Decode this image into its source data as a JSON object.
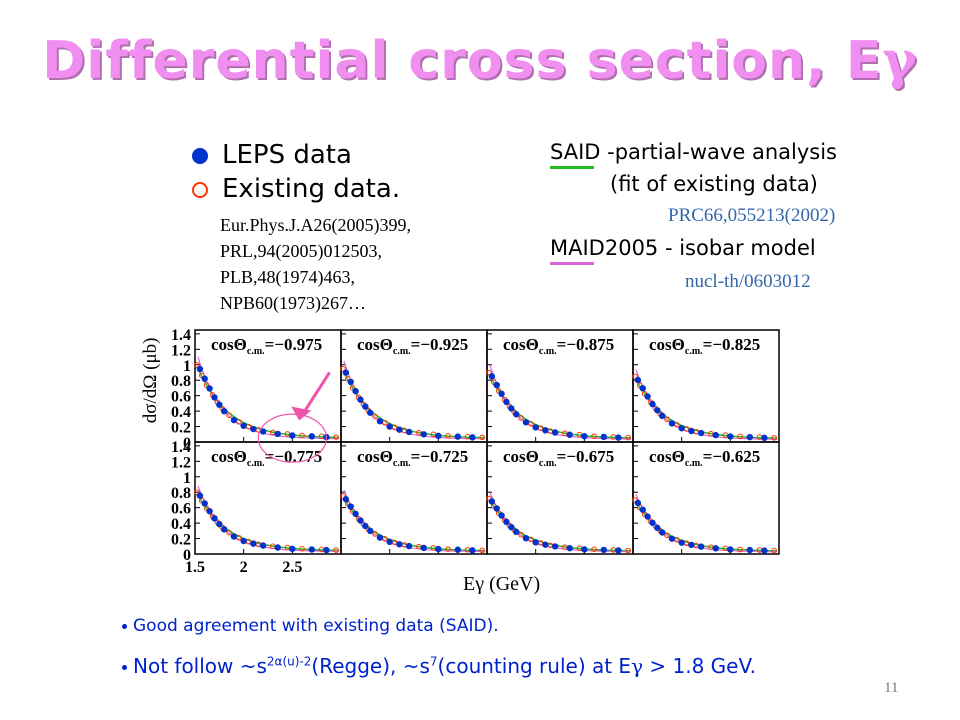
{
  "title": {
    "text": "Differential cross section, E",
    "gamma": "γ"
  },
  "legend": {
    "leps": "LEPS data",
    "existing": "Existing data."
  },
  "references": [
    "Eur.Phys.J.A26(2005)399,",
    "PRL,94(2005)012503,",
    "PLB,48(1974)463,",
    "NPB60(1973)267…"
  ],
  "models": {
    "said_line1": "SAID -partial-wave analysis",
    "said_line2": "(fit of existing data)",
    "said_cite": "PRC66,055213(2002)",
    "maid": "MAID2005 - isobar model",
    "maid_cite": "nucl-th/0603012",
    "said_color": "#22bb22",
    "maid_color": "#dd66dd"
  },
  "bullets": {
    "b1": "Good agreement with existing data (SAID).",
    "b2_a": "Not follow ~s",
    "b2_sup1": "2α(u)-2",
    "b2_b": "(Regge), ~s",
    "b2_sup2": "7",
    "b2_c": "(counting rule) at E",
    "b2_gamma": "γ",
    "b2_d": " > 1.8 GeV."
  },
  "page_number": "11",
  "colors": {
    "title": "#f08ff0",
    "leps": "#0033cc",
    "existing": "#ff3300",
    "bullet_text": "#0022cc",
    "highlight": "#ee55aa"
  },
  "chart_data": {
    "type": "scatter",
    "xlabel": "Eγ (GeV)",
    "ylabel": "dσ/dΩ (μb)",
    "xlim": [
      1.5,
      3.0
    ],
    "ylim": [
      0,
      1.45
    ],
    "x_ticks": [
      1.5,
      2,
      2.5
    ],
    "x_tick_labels": [
      "1.5",
      "2",
      "2.5"
    ],
    "y_ticks": [
      0,
      0.2,
      0.4,
      0.6,
      0.8,
      1,
      1.2,
      1.4
    ],
    "y_tick_labels": [
      "0",
      "0.2",
      "0.4",
      "0.6",
      "0.8",
      "1",
      "1.2",
      "1.4"
    ],
    "panel_label_prefix": "cosΘ",
    "panel_label_sub": "c.m.",
    "panels": [
      {
        "cos": "=−0.975",
        "amp": 1.0
      },
      {
        "cos": "=−0.925",
        "amp": 0.95
      },
      {
        "cos": "=−0.875",
        "amp": 0.9
      },
      {
        "cos": "=−0.825",
        "amp": 0.85
      },
      {
        "cos": "=−0.775",
        "amp": 0.8
      },
      {
        "cos": "=−0.725",
        "amp": 0.75
      },
      {
        "cos": "=−0.675",
        "amp": 0.72
      },
      {
        "cos": "=−0.625",
        "amp": 0.7
      }
    ],
    "leps_x": [
      1.55,
      1.6,
      1.65,
      1.7,
      1.75,
      1.8,
      1.9,
      2.0,
      2.1,
      2.2,
      2.35,
      2.5,
      2.7,
      2.85
    ],
    "leps_y_rel": [
      0.9,
      0.78,
      0.66,
      0.55,
      0.46,
      0.38,
      0.27,
      0.2,
      0.16,
      0.13,
      0.1,
      0.08,
      0.07,
      0.06
    ],
    "existing_x": [
      1.52,
      1.57,
      1.62,
      1.68,
      1.73,
      1.78,
      1.85,
      1.95,
      2.05,
      2.15,
      2.3,
      2.45,
      2.6,
      2.8,
      2.95
    ],
    "existing_y_rel": [
      0.95,
      0.82,
      0.7,
      0.58,
      0.49,
      0.41,
      0.33,
      0.25,
      0.19,
      0.15,
      0.12,
      0.1,
      0.08,
      0.07,
      0.06
    ]
  }
}
